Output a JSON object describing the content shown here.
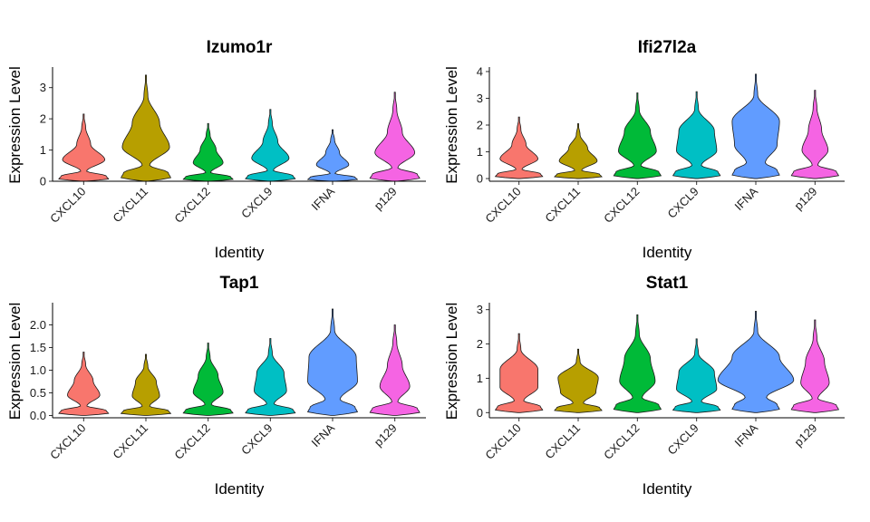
{
  "chart_data": [
    {
      "type": "violin",
      "title": "Izumo1r",
      "xlabel": "Identity",
      "ylabel": "Expression Level",
      "ylim": [
        0,
        3.6
      ],
      "yticks": [
        0,
        1,
        2,
        3
      ],
      "categories": [
        "CXCL10",
        "CXCL11",
        "CXCL12",
        "CXCL9",
        "IFNA",
        "p129"
      ],
      "colors": [
        "#F8766D",
        "#B79F00",
        "#00BA38",
        "#00BFC4",
        "#619CFF",
        "#F564E3"
      ],
      "max": [
        2.15,
        3.4,
        1.85,
        2.3,
        1.65,
        2.85
      ],
      "shapes": [
        [
          0.05,
          0.12,
          0.85,
          0.28
        ],
        [
          0.05,
          0.15,
          0.95,
          0.55
        ],
        [
          0.05,
          0.1,
          0.6,
          0.32
        ],
        [
          0.05,
          0.12,
          0.75,
          0.3
        ],
        [
          0.05,
          0.1,
          0.65,
          0.28
        ],
        [
          0.06,
          0.12,
          0.8,
          0.3
        ]
      ]
    },
    {
      "type": "violin",
      "title": "Ifi27l2a",
      "xlabel": "Identity",
      "ylabel": "Expression Level",
      "ylim": [
        -0.1,
        4.1
      ],
      "yticks": [
        0,
        1,
        2,
        3,
        4
      ],
      "categories": [
        "CXCL10",
        "CXCL11",
        "CXCL12",
        "CXCL9",
        "IFNA",
        "p129"
      ],
      "colors": [
        "#F8766D",
        "#B79F00",
        "#00BA38",
        "#00BFC4",
        "#619CFF",
        "#F564E3"
      ],
      "max": [
        2.3,
        2.05,
        3.2,
        3.25,
        3.9,
        3.3
      ],
      "shapes": [
        [
          0.05,
          0.13,
          0.8,
          0.3
        ],
        [
          0.05,
          0.15,
          0.8,
          0.4
        ],
        [
          0.05,
          0.15,
          0.8,
          0.55
        ],
        [
          0.05,
          0.2,
          0.85,
          0.75
        ],
        [
          0.05,
          0.4,
          0.9,
          1.0
        ],
        [
          0.05,
          0.12,
          0.55,
          0.28
        ]
      ]
    },
    {
      "type": "violin",
      "title": "Tap1",
      "xlabel": "Identity",
      "ylabel": "Expression Level",
      "ylim": [
        -0.05,
        2.45
      ],
      "yticks": [
        0.0,
        0.5,
        1.0,
        1.5,
        2.0
      ],
      "ytick_labels": [
        "0.0",
        "0.5",
        "1.0",
        "1.5",
        "2.0"
      ],
      "categories": [
        "CXCL10",
        "CXCL11",
        "CXCL12",
        "CXCL9",
        "IFNA",
        "p129"
      ],
      "colors": [
        "#F8766D",
        "#B79F00",
        "#00BA38",
        "#00BFC4",
        "#619CFF",
        "#F564E3"
      ],
      "max": [
        1.4,
        1.35,
        1.6,
        1.7,
        2.35,
        2.0
      ],
      "shapes": [
        [
          0.05,
          0.13,
          0.65,
          0.38
        ],
        [
          0.05,
          0.15,
          0.55,
          0.42
        ],
        [
          0.05,
          0.13,
          0.6,
          0.4
        ],
        [
          0.05,
          0.15,
          0.65,
          0.55
        ],
        [
          0.05,
          0.3,
          1.0,
          0.95
        ],
        [
          0.05,
          0.12,
          0.6,
          0.3
        ]
      ]
    },
    {
      "type": "violin",
      "title": "Stat1",
      "xlabel": "Identity",
      "ylabel": "Expression Level",
      "ylim": [
        -0.15,
        3.15
      ],
      "yticks": [
        0,
        1,
        2,
        3
      ],
      "categories": [
        "CXCL10",
        "CXCL11",
        "CXCL12",
        "CXCL9",
        "IFNA",
        "p129"
      ],
      "colors": [
        "#F8766D",
        "#B79F00",
        "#00BA38",
        "#00BFC4",
        "#619CFF",
        "#F564E3"
      ],
      "max": [
        2.3,
        1.85,
        2.85,
        2.15,
        2.95,
        2.7
      ],
      "shapes": [
        [
          0.05,
          0.2,
          0.8,
          0.8
        ],
        [
          0.05,
          0.22,
          0.75,
          0.85
        ],
        [
          0.05,
          0.2,
          0.75,
          0.55
        ],
        [
          0.05,
          0.2,
          0.85,
          0.75
        ],
        [
          0.05,
          0.45,
          1.6,
          1.0
        ],
        [
          0.05,
          0.12,
          0.6,
          0.4
        ]
      ]
    }
  ]
}
